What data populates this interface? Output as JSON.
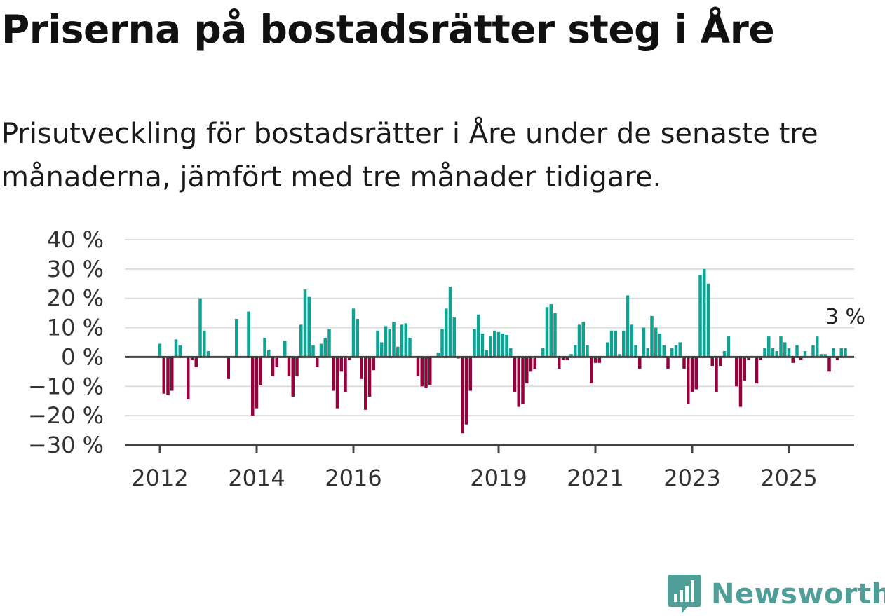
{
  "title": "Priserna på bostadsrätter steg i Åre",
  "subtitle": "Prisutveckling för bostadsrätter i Åre under de senaste tre månaderna, jämfört med tre månader tidigare.",
  "brand": "Newsworthy",
  "colors": {
    "positive": "#0fa394",
    "negative": "#96003c",
    "brand": "#4f9e97",
    "grid": "#dddddd",
    "axis": "#444444"
  },
  "chart_data": {
    "type": "bar",
    "ylim": [
      -30,
      40
    ],
    "yticks": [
      40,
      30,
      20,
      10,
      0,
      -10,
      -20,
      -30
    ],
    "ytick_labels": [
      "40 %",
      "30 %",
      "20 %",
      "10 %",
      "0 %",
      "−10 %",
      "−20 %",
      "−30 %"
    ],
    "xticks": [
      "2012",
      "2014",
      "2016",
      "2019",
      "2021",
      "2023",
      "2025"
    ],
    "start": "2012-01",
    "series": [
      {
        "values": [
          4.5,
          -12.5,
          -13,
          -11.5,
          6,
          4,
          0,
          -14.5,
          -1,
          -3.5,
          20,
          9,
          2,
          0,
          0,
          0,
          0,
          -7.5,
          0,
          13,
          0,
          0,
          15.5,
          -20,
          -17.5,
          -9.5,
          6.5,
          2.5,
          -6.5,
          -3.5,
          0,
          5.5,
          -6.5,
          -13.5,
          -6.5,
          11,
          23,
          20.5,
          4,
          -3.5,
          4.5,
          6.5,
          9.5,
          -11.5,
          -17.5,
          -5,
          -12,
          -1,
          16.5,
          13,
          -7.5,
          -18,
          -13.5,
          -4.5,
          9,
          5,
          10.5,
          9.5,
          12,
          3.5,
          11,
          11.5,
          6.5,
          0,
          -6.5,
          -10,
          -10.5,
          -9.5,
          0,
          1.5,
          9.5,
          16.5,
          24,
          13.5,
          -0.5,
          -26,
          -23,
          -11.5,
          9.5,
          14.5,
          8,
          2.5,
          7,
          9,
          8.5,
          8,
          7.5,
          3,
          -12,
          -17,
          -16,
          -9,
          -5,
          -4,
          0,
          3,
          17,
          18,
          15,
          -4,
          -1,
          -1,
          1,
          4,
          11,
          12,
          4,
          -9,
          -2,
          -2,
          0,
          5,
          9,
          9,
          1,
          9,
          21,
          11,
          4,
          -4,
          10,
          3,
          14,
          10,
          8,
          4,
          -4,
          3,
          4,
          5,
          -4,
          -16,
          -12,
          -11,
          28,
          30,
          25,
          -3,
          -12,
          -3,
          2,
          7,
          0,
          -10,
          -17,
          -8,
          -1,
          0,
          -9,
          -1,
          3,
          7,
          3,
          2,
          7,
          5,
          3,
          -2,
          4,
          -1,
          2,
          0,
          4,
          7,
          1,
          1,
          -5,
          3,
          -1,
          3,
          3
        ]
      }
    ],
    "last_label": "3 %"
  }
}
